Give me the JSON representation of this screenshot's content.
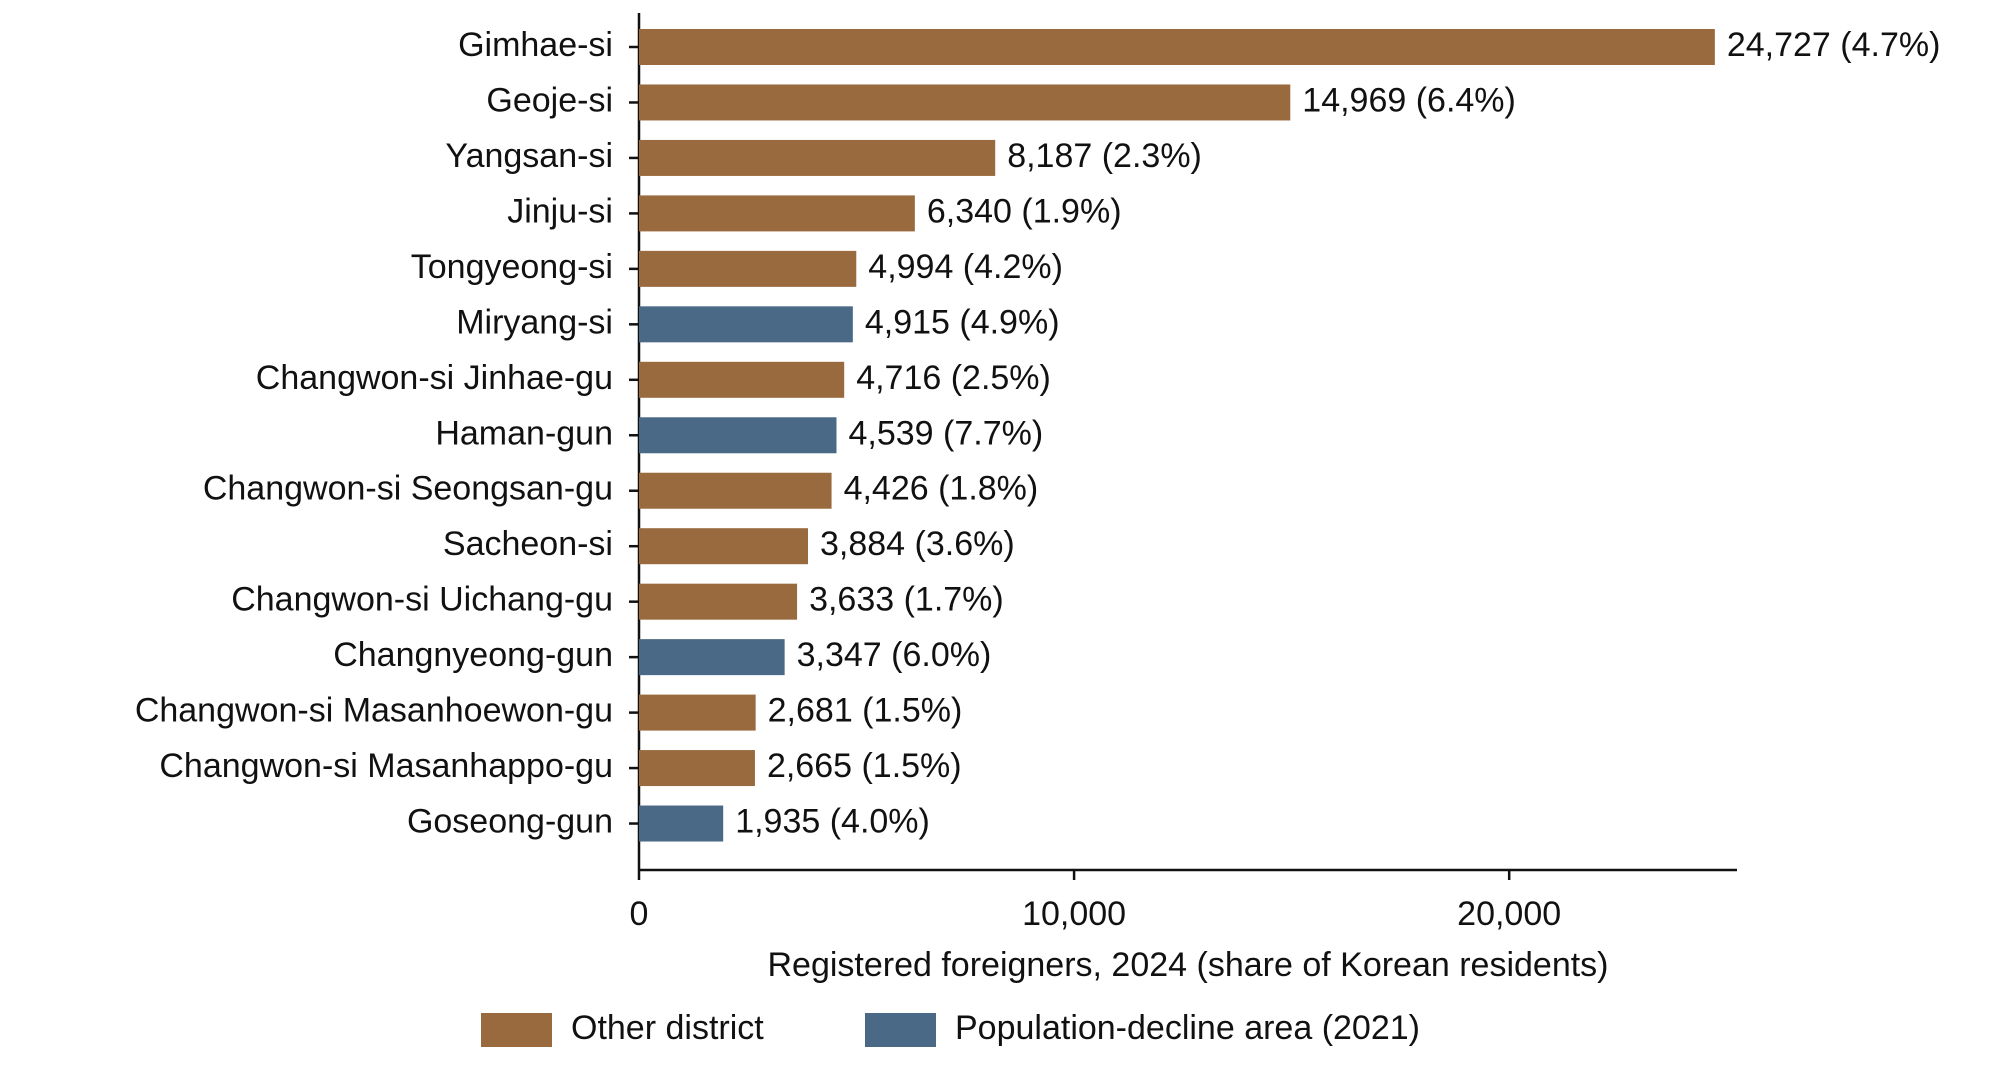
{
  "chart_data": {
    "type": "barh",
    "x_label": "Registered foreigners, 2024 (share of Korean residents)",
    "categories": [
      "Gimhae-si",
      "Geoje-si",
      "Yangsan-si",
      "Jinju-si",
      "Tongyeong-si",
      "Miryang-si",
      "Changwon-si Jinhae-gu",
      "Haman-gun",
      "Changwon-si Seongsan-gu",
      "Sacheon-si",
      "Changwon-si Uichang-gu",
      "Changnyeong-gun",
      "Changwon-si Masanhoewon-gu",
      "Changwon-si Masanhappo-gu",
      "Goseong-gun"
    ],
    "series": [
      {
        "name": "Other district",
        "color": "#9a6a3f",
        "values": [
          24727,
          14969,
          8187,
          6340,
          4994,
          null,
          4716,
          null,
          4426,
          3884,
          3633,
          null,
          2681,
          2665,
          null
        ],
        "value_labels": [
          "24,727 (4.7%)",
          "14,969 (6.4%)",
          "8,187 (2.3%)",
          "6,340 (1.9%)",
          "4,994 (4.2%)",
          null,
          "4,716 (2.5%)",
          null,
          "4,426 (1.8%)",
          "3,884 (3.6%)",
          "3,633 (1.7%)",
          null,
          "2,681 (1.5%)",
          "2,665 (1.5%)",
          null
        ]
      },
      {
        "name": "Population-decline area (2021)",
        "color": "#4a6987",
        "values": [
          null,
          null,
          null,
          null,
          null,
          4915,
          null,
          4539,
          null,
          null,
          null,
          3347,
          null,
          null,
          1935
        ],
        "value_labels": [
          null,
          null,
          null,
          null,
          null,
          "4,915 (4.9%)",
          null,
          "4,539 (7.7%)",
          null,
          null,
          null,
          "3,347 (6.0%)",
          null,
          null,
          "1,935 (4.0%)"
        ]
      }
    ],
    "xlim": [
      0,
      25236
    ],
    "xticks": [
      0,
      {
        "value": 10000,
        "label": "10,000"
      },
      {
        "value": 20000,
        "label": "20,000"
      }
    ],
    "grid": false
  }
}
